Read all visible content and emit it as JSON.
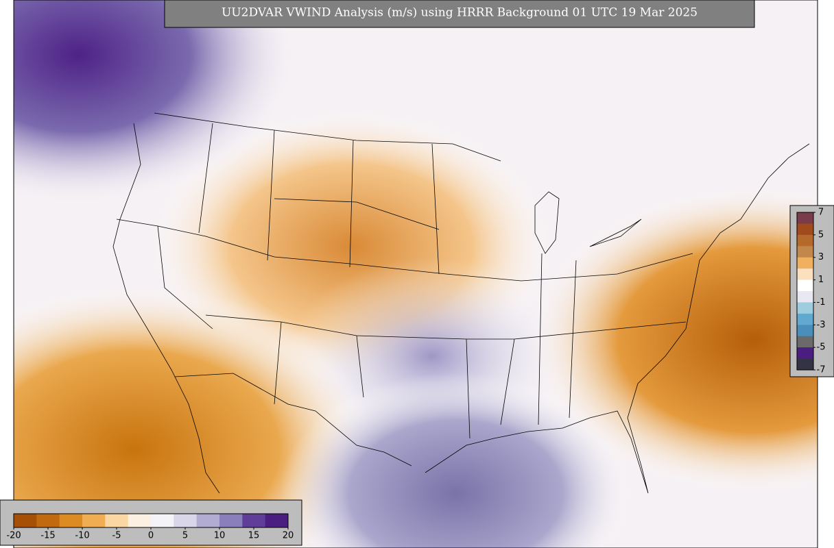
{
  "title": "UU2DVAR VWIND Analysis (m/s) using HRRR Background 01 UTC 19 Mar 2025",
  "colorbars": [
    {
      "orientation": "horizontal",
      "ticks": [
        -20,
        -15,
        -10,
        -5,
        0,
        5,
        10,
        15,
        20
      ],
      "colors": [
        "#a65005",
        "#c0690f",
        "#dc8a22",
        "#f0ad52",
        "#fbd7a3",
        "#fbf0e2",
        "#f4f3f8",
        "#d9d6ea",
        "#b2abd2",
        "#8a7fbb",
        "#613d9a",
        "#4a1d80"
      ]
    },
    {
      "orientation": "vertical",
      "ticks": [
        7,
        5,
        3,
        1,
        -1,
        -3,
        -5,
        -7
      ],
      "colors": [
        "#7a3b4a",
        "#a04a1e",
        "#b56a2c",
        "#c2874a",
        "#f0b060",
        "#fbe0c0",
        "#ffffff",
        "#e8e8f2",
        "#9fcde0",
        "#62a9cf",
        "#4a8fbb",
        "#6a6a6a",
        "#4a1d80",
        "#333344"
      ]
    }
  ]
}
